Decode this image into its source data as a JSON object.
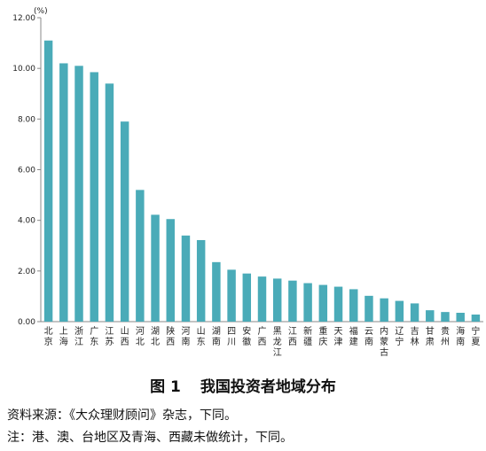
{
  "chart_data": {
    "type": "bar",
    "unit_label": "(%)",
    "ylim": [
      0,
      12
    ],
    "y_ticks": [
      "0.00",
      "2.00",
      "4.00",
      "6.00",
      "8.00",
      "10.00",
      "12.00"
    ],
    "grid": false,
    "bar_color": "#4aabb8",
    "categories": [
      "北京",
      "上海",
      "浙江",
      "广东",
      "江苏",
      "山西",
      "河北",
      "湖北",
      "陕西",
      "河南",
      "山东",
      "湖南",
      "四川",
      "安徽",
      "广西",
      "黑龙江",
      "江西",
      "新疆",
      "重庆",
      "天津",
      "福建",
      "云南",
      "内蒙古",
      "辽宁",
      "吉林",
      "甘肃",
      "贵州",
      "海南",
      "宁夏"
    ],
    "values": [
      11.1,
      10.2,
      10.1,
      9.85,
      9.4,
      7.9,
      5.2,
      4.22,
      4.05,
      3.4,
      3.22,
      2.35,
      2.05,
      1.9,
      1.78,
      1.7,
      1.62,
      1.52,
      1.45,
      1.38,
      1.28,
      1.02,
      0.92,
      0.82,
      0.72,
      0.45,
      0.38,
      0.35,
      0.28
    ]
  },
  "caption": {
    "figure": "图 1",
    "title": "我国投资者地域分布"
  },
  "notes": {
    "source": "资料来源：《大众理财顾问》杂志，下同。",
    "remark": "注：港、澳、台地区及青海、西藏未做统计，下同。"
  }
}
